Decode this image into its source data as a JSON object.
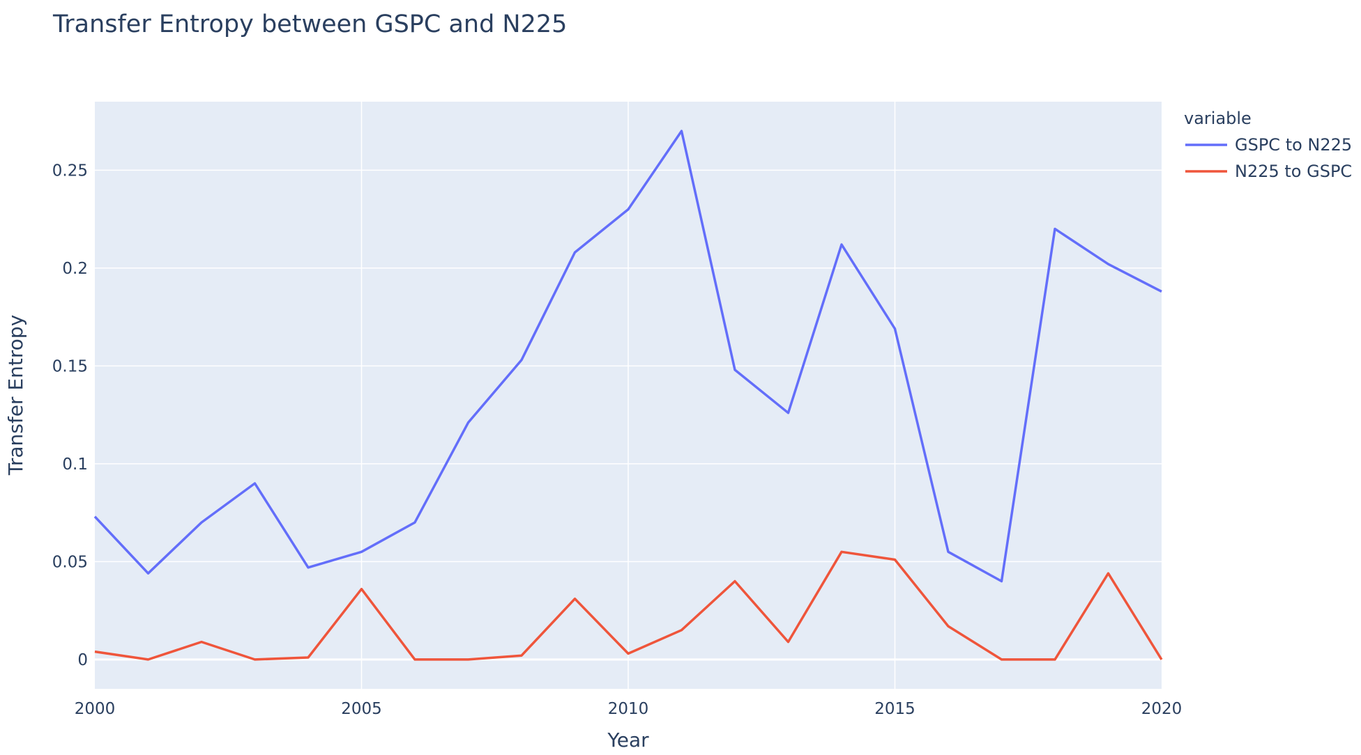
{
  "chart_data": {
    "type": "line",
    "title": "Transfer Entropy between GSPC and N225",
    "xlabel": "Year",
    "ylabel": "Transfer Entropy",
    "x": [
      2000,
      2001,
      2002,
      2003,
      2004,
      2005,
      2006,
      2007,
      2008,
      2009,
      2010,
      2011,
      2012,
      2013,
      2014,
      2015,
      2016,
      2017,
      2018,
      2019,
      2020
    ],
    "xlim": [
      2000,
      2020
    ],
    "ylim": [
      -0.015,
      0.285
    ],
    "x_ticks": [
      2000,
      2005,
      2010,
      2015,
      2020
    ],
    "x_tick_labels": [
      "2000",
      "2005",
      "2010",
      "2015",
      "2020"
    ],
    "y_ticks": [
      0,
      0.05,
      0.1,
      0.15,
      0.2,
      0.25
    ],
    "y_tick_labels": [
      "0",
      "0.05",
      "0.1",
      "0.15",
      "0.2",
      "0.25"
    ],
    "grid": true,
    "plot_background": "#e5ecf6",
    "legend": {
      "title": "variable",
      "placement": "top-right, outside plot"
    },
    "series": [
      {
        "name": "GSPC to N225",
        "color": "#636efa",
        "values": [
          0.073,
          0.044,
          0.07,
          0.09,
          0.047,
          0.055,
          0.07,
          0.121,
          0.153,
          0.208,
          0.23,
          0.27,
          0.148,
          0.126,
          0.212,
          0.169,
          0.055,
          0.04,
          0.22,
          0.202,
          0.188
        ]
      },
      {
        "name": "N225 to GSPC",
        "color": "#ef553b",
        "values": [
          0.004,
          0.0,
          0.009,
          0.0,
          0.001,
          0.036,
          0.0,
          0.0,
          0.002,
          0.031,
          0.003,
          0.015,
          0.04,
          0.009,
          0.055,
          0.051,
          0.017,
          0.0,
          0.0,
          0.044,
          0.0
        ]
      }
    ]
  }
}
